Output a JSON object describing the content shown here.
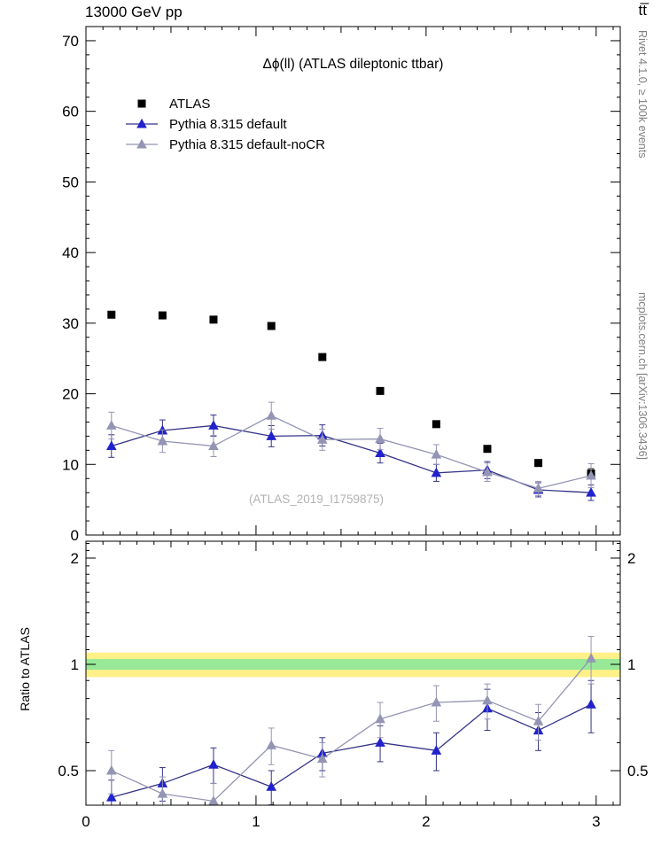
{
  "header": {
    "left": "13000 GeV pp",
    "right": "tt̅"
  },
  "sidebar": {
    "rivet": "Rivet 4.1.0, ≥ 100k events",
    "mcplots": "mcplots.cern.ch [arXiv:1306.3436]"
  },
  "chart_data": {
    "type": "line",
    "title": "Δϕ(ll) (ATLAS dileptonic ttbar)",
    "watermark": "(ATLAS_2019_I1759875)",
    "ratio_ylabel": "Ratio to ATLAS",
    "xlabel": "",
    "xlim": [
      0,
      3.1416
    ],
    "xticks": [
      0,
      1,
      2,
      3
    ],
    "main_ylim": [
      0,
      72
    ],
    "main_yticks": [
      0,
      10,
      20,
      30,
      40,
      50,
      60,
      70
    ],
    "ratio_scale": "log",
    "ratio_yticks": [
      0.5,
      1,
      2
    ],
    "ratio_minor_ticks": [
      0.4,
      0.6,
      0.7,
      0.8,
      0.9,
      1.1,
      1.2,
      1.3,
      1.4,
      1.5,
      1.6,
      1.7,
      1.8,
      1.9,
      2.1,
      2.2
    ],
    "x": [
      0.15,
      0.45,
      0.75,
      1.09,
      1.39,
      1.73,
      2.06,
      2.36,
      2.66,
      2.97
    ],
    "series": [
      {
        "name": "ATLAS",
        "marker": "square",
        "color": "#000000",
        "line_color": null,
        "values": [
          31.2,
          31.1,
          30.5,
          29.6,
          25.2,
          20.4,
          15.7,
          12.2,
          10.2,
          8.7
        ],
        "errors": [
          0.4,
          0.4,
          0.4,
          0.4,
          0.4,
          0.35,
          0.3,
          0.3,
          0.4,
          0.7
        ]
      },
      {
        "name": "Pythia 8.315 default",
        "marker": "triangle",
        "color": "#2222cc",
        "line_color": "#333388",
        "values": [
          12.6,
          14.8,
          15.5,
          14.0,
          14.1,
          11.6,
          8.8,
          9.2,
          6.4,
          6.0
        ],
        "errors": [
          1.6,
          1.5,
          1.5,
          1.5,
          1.5,
          1.4,
          1.2,
          1.2,
          1.0,
          1.1
        ]
      },
      {
        "name": "Pythia 8.315 default-noCR",
        "marker": "triangle",
        "color": "#9494b4",
        "line_color": "#9494b4",
        "values": [
          15.5,
          13.3,
          12.6,
          16.9,
          13.5,
          13.6,
          11.4,
          8.9,
          6.6,
          8.4
        ],
        "errors": [
          1.9,
          1.6,
          1.5,
          1.9,
          1.5,
          1.5,
          1.4,
          1.3,
          1.0,
          1.7
        ]
      }
    ],
    "ratio_series": [
      {
        "name": "Pythia 8.315 default",
        "marker": "triangle",
        "color": "#2222cc",
        "line_color": "#333388",
        "values": [
          0.42,
          0.46,
          0.52,
          0.45,
          0.56,
          0.6,
          0.57,
          0.75,
          0.65,
          0.77
        ],
        "errors": [
          0.05,
          0.05,
          0.06,
          0.05,
          0.06,
          0.07,
          0.07,
          0.1,
          0.08,
          0.13
        ]
      },
      {
        "name": "Pythia 8.315 default-noCR",
        "marker": "triangle",
        "color": "#9494b4",
        "line_color": "#9494b4",
        "values": [
          0.5,
          0.43,
          0.41,
          0.59,
          0.54,
          0.7,
          0.78,
          0.79,
          0.69,
          1.04
        ],
        "errors": [
          0.07,
          0.05,
          0.05,
          0.07,
          0.06,
          0.08,
          0.09,
          0.09,
          0.08,
          0.16
        ]
      }
    ],
    "bands": {
      "yellow": {
        "color": "#fff188",
        "lo": 0.92,
        "hi": 1.08
      },
      "green": {
        "color": "#97e897",
        "lo": 0.965,
        "hi": 1.035
      }
    },
    "legend_position": "top-left"
  }
}
